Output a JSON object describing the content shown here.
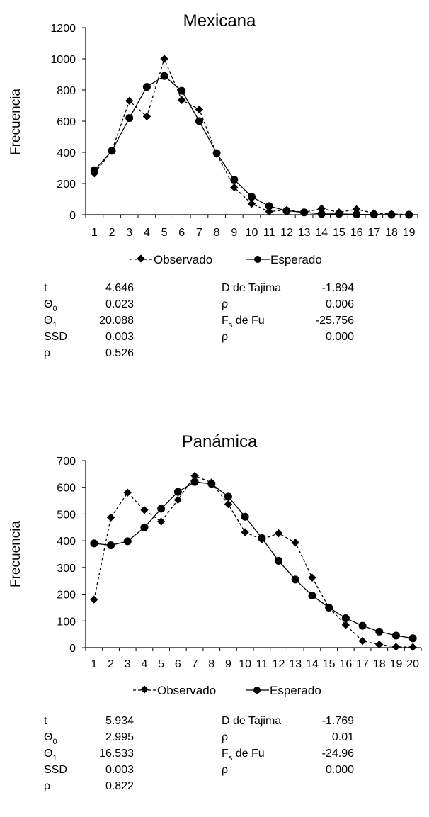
{
  "chart_data": [
    {
      "type": "line",
      "title": "Mexicana",
      "xlabel": "",
      "ylabel": "Frecuencia",
      "ylim": [
        0,
        1200
      ],
      "yticks": [
        0,
        200,
        400,
        600,
        800,
        1000,
        1200
      ],
      "categories": [
        "1",
        "2",
        "3",
        "4",
        "5",
        "6",
        "7",
        "8",
        "9",
        "10",
        "11",
        "12",
        "13",
        "14",
        "15",
        "16",
        "17",
        "18",
        "19"
      ],
      "grid": false,
      "legend_position": "bottom",
      "series": [
        {
          "name": "Observado",
          "marker": "diamond",
          "line_style": "dashed",
          "values": [
            265,
            410,
            730,
            630,
            1000,
            735,
            675,
            390,
            175,
            70,
            20,
            30,
            15,
            40,
            15,
            35,
            10,
            5,
            0
          ]
        },
        {
          "name": "Esperado",
          "marker": "circle",
          "line_style": "solid",
          "values": [
            285,
            410,
            620,
            820,
            890,
            795,
            600,
            395,
            225,
            115,
            55,
            25,
            15,
            5,
            5,
            2,
            1,
            0,
            0
          ]
        }
      ],
      "stats": {
        "left": [
          {
            "label": "t",
            "sub": "",
            "value": "4.646"
          },
          {
            "label": "Θ",
            "sub": "0",
            "value": "0.023"
          },
          {
            "label": "Θ",
            "sub": "1",
            "value": "20.088"
          },
          {
            "label": "SSD",
            "sub": "",
            "value": "0.003"
          },
          {
            "label": "ρ",
            "sub": "",
            "value": "0.526"
          }
        ],
        "right": [
          {
            "label": "D de Tajima",
            "sub": "",
            "suffix": "",
            "value": "-1.894"
          },
          {
            "label": "ρ",
            "sub": "",
            "suffix": "",
            "value": "0.006"
          },
          {
            "label": "F",
            "sub": "s",
            "suffix": " de Fu",
            "value": "-25.756"
          },
          {
            "label": "ρ",
            "sub": "",
            "suffix": "",
            "value": "0.000"
          }
        ]
      }
    },
    {
      "type": "line",
      "title": "Panámica",
      "xlabel": "",
      "ylabel": "Frecuencia",
      "ylim": [
        0,
        700
      ],
      "yticks": [
        0,
        100,
        200,
        300,
        400,
        500,
        600,
        700
      ],
      "categories": [
        "1",
        "2",
        "3",
        "4",
        "5",
        "6",
        "7",
        "8",
        "9",
        "10",
        "11",
        "12",
        "13",
        "14",
        "15",
        "16",
        "17",
        "18",
        "19",
        "20"
      ],
      "grid": false,
      "legend_position": "bottom",
      "series": [
        {
          "name": "Observado",
          "marker": "diamond",
          "line_style": "dashed",
          "values": [
            180,
            487,
            580,
            515,
            472,
            553,
            643,
            618,
            537,
            432,
            405,
            428,
            393,
            262,
            150,
            85,
            25,
            12,
            3,
            2
          ]
        },
        {
          "name": "Esperado",
          "marker": "circle",
          "line_style": "solid",
          "values": [
            390,
            383,
            398,
            450,
            520,
            583,
            620,
            613,
            565,
            490,
            410,
            325,
            255,
            195,
            150,
            110,
            82,
            60,
            45,
            35
          ]
        }
      ],
      "stats": {
        "left": [
          {
            "label": "t",
            "sub": "",
            "value": "5.934"
          },
          {
            "label": "Θ",
            "sub": "0",
            "value": "2.995"
          },
          {
            "label": "Θ",
            "sub": "1",
            "value": "16.533"
          },
          {
            "label": "SSD",
            "sub": "",
            "value": "0.003"
          },
          {
            "label": "ρ",
            "sub": "",
            "value": "0.822"
          }
        ],
        "right": [
          {
            "label": "D de Tajima",
            "sub": "",
            "suffix": "",
            "value": "-1.769"
          },
          {
            "label": "ρ",
            "sub": "",
            "suffix": "",
            "value": "0.01"
          },
          {
            "label": "F",
            "sub": "s",
            "suffix": " de Fu",
            "value": "-24.96"
          },
          {
            "label": "ρ",
            "sub": "",
            "suffix": "",
            "value": "0.000"
          }
        ]
      }
    }
  ]
}
